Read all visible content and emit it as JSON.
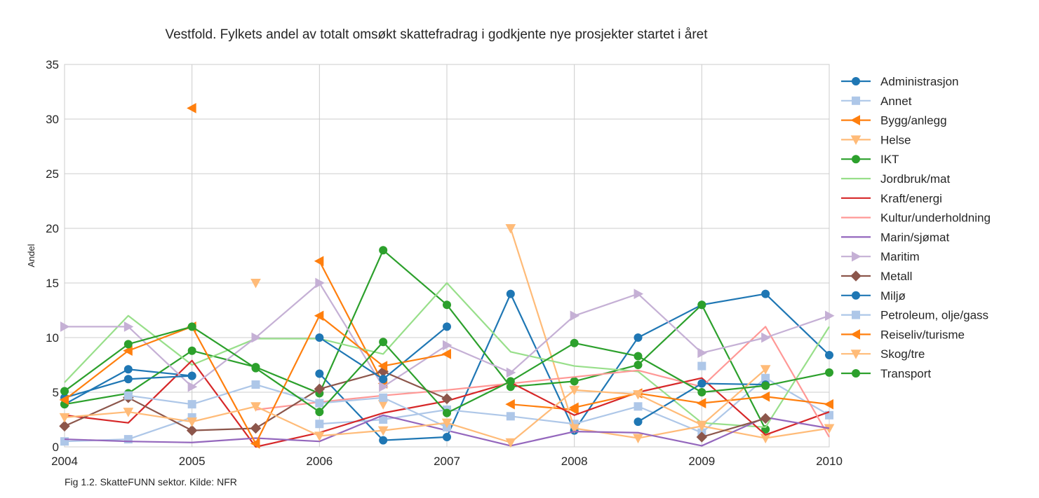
{
  "chart_data": {
    "type": "line",
    "title": "Vestfold. Fylkets andel av totalt omsøkt skattefradrag i godkjente nye prosjekter startet i året",
    "xlabel": "",
    "ylabel": "Andel",
    "caption": "Fig 1.2. SkatteFUNN sektor. Kilde: NFR",
    "xlim": [
      2004,
      2010
    ],
    "ylim": [
      0,
      35
    ],
    "xticks": [
      "2004",
      "2005",
      "2006",
      "2007",
      "2008",
      "2009",
      "2010"
    ],
    "yticks": [
      "0",
      "5",
      "10",
      "15",
      "20",
      "25",
      "30",
      "35"
    ],
    "grid": true,
    "legend_position": "right",
    "x": [
      2004,
      2004.5,
      2005,
      2005.5,
      2006,
      2006.5,
      2007,
      2007.5,
      2008,
      2008.5,
      2009,
      2009.5,
      2010
    ],
    "series": [
      {
        "name": "Administrasjon",
        "color": "#1f77b4",
        "marker": "circle",
        "values": [
          3.9,
          7.1,
          6.5,
          null,
          6.7,
          0.6,
          0.9,
          14.0,
          1.5,
          10.0,
          13.0,
          14.0,
          8.4
        ]
      },
      {
        "name": "Annet",
        "color": "#aec7e8",
        "marker": "square",
        "values": [
          0.5,
          0.7,
          2.7,
          null,
          2.1,
          2.5,
          3.4,
          2.8,
          2.1,
          3.7,
          1.3,
          6.3,
          2.9
        ]
      },
      {
        "name": "Bygg/anlegg",
        "color": "#ff7f0e",
        "marker": "triangle-left",
        "values": [
          null,
          null,
          31.0,
          null,
          17.0,
          5.8,
          null,
          3.9,
          3.4,
          null,
          null,
          null,
          null
        ]
      },
      {
        "name": "Helse",
        "color": "#ffbb78",
        "marker": "triangle-down",
        "values": [
          null,
          null,
          null,
          15.0,
          null,
          3.9,
          null,
          20.0,
          1.7,
          0.8,
          1.9,
          0.8,
          1.7
        ]
      },
      {
        "name": "IKT",
        "color": "#2ca02c",
        "marker": "circle",
        "values": [
          3.9,
          4.9,
          8.8,
          7.3,
          4.9,
          18.0,
          13.0,
          5.5,
          6.0,
          7.5,
          13.0,
          1.6,
          null
        ]
      },
      {
        "name": "Jordbruk/mat",
        "color": "#98df8a",
        "marker": "none",
        "values": [
          5.9,
          12.0,
          7.5,
          9.9,
          9.9,
          8.5,
          15.0,
          8.7,
          7.4,
          6.9,
          2.2,
          1.8,
          11.0
        ]
      },
      {
        "name": "Kraft/energi",
        "color": "#d62728",
        "marker": "none",
        "values": [
          2.9,
          2.2,
          7.9,
          0.0,
          1.3,
          3.1,
          4.2,
          5.9,
          2.9,
          5.0,
          6.3,
          1.1,
          3.2
        ]
      },
      {
        "name": "Kultur/underholdning",
        "color": "#ff9896",
        "marker": "none",
        "values": [
          null,
          null,
          null,
          3.4,
          4.1,
          4.7,
          5.2,
          5.8,
          6.4,
          7.0,
          5.5,
          11.0,
          0.9
        ]
      },
      {
        "name": "Marin/sjømat",
        "color": "#9467bd",
        "marker": "none",
        "values": [
          0.7,
          0.5,
          0.4,
          0.8,
          0.5,
          2.9,
          1.5,
          0.1,
          1.4,
          1.3,
          0.1,
          2.7,
          1.7
        ]
      },
      {
        "name": "Maritim",
        "color": "#c5b0d5",
        "marker": "triangle-right",
        "values": [
          11.0,
          11.0,
          5.5,
          10.0,
          15.0,
          5.5,
          9.3,
          6.8,
          12.0,
          14.0,
          8.6,
          10.0,
          12.0
        ]
      },
      {
        "name": "Metall",
        "color": "#8c564b",
        "marker": "diamond",
        "values": [
          1.9,
          4.5,
          1.5,
          1.7,
          5.3,
          6.9,
          4.4,
          null,
          null,
          null,
          0.9,
          2.6,
          null
        ]
      },
      {
        "name": "Miljø",
        "color": "#1f77b4",
        "marker": "circle",
        "values": [
          4.5,
          6.2,
          6.5,
          null,
          10.0,
          6.2,
          11.0,
          null,
          null,
          2.3,
          5.8,
          5.7,
          null
        ]
      },
      {
        "name": "Petroleum, olje/gass",
        "color": "#aec7e8",
        "marker": "square",
        "values": [
          null,
          4.7,
          3.9,
          5.7,
          4.0,
          4.5,
          1.8,
          null,
          null,
          null,
          7.4,
          null,
          null
        ]
      },
      {
        "name": "Reiseliv/turisme",
        "color": "#ff7f0e",
        "marker": "triangle-left",
        "values": [
          4.3,
          8.8,
          11.0,
          0.3,
          12.0,
          7.4,
          8.5,
          null,
          3.6,
          4.9,
          4.0,
          4.6,
          3.9
        ]
      },
      {
        "name": "Skog/tre",
        "color": "#ffbb78",
        "marker": "triangle-down",
        "values": [
          2.7,
          3.2,
          2.3,
          3.7,
          1.0,
          1.5,
          2.2,
          0.4,
          5.2,
          4.8,
          2.0,
          7.1,
          null
        ]
      },
      {
        "name": "Transport",
        "color": "#2ca02c",
        "marker": "circle",
        "values": [
          5.1,
          9.4,
          11.0,
          7.2,
          3.2,
          9.6,
          3.1,
          6.0,
          9.5,
          8.3,
          5.0,
          5.6,
          6.8
        ]
      }
    ]
  }
}
